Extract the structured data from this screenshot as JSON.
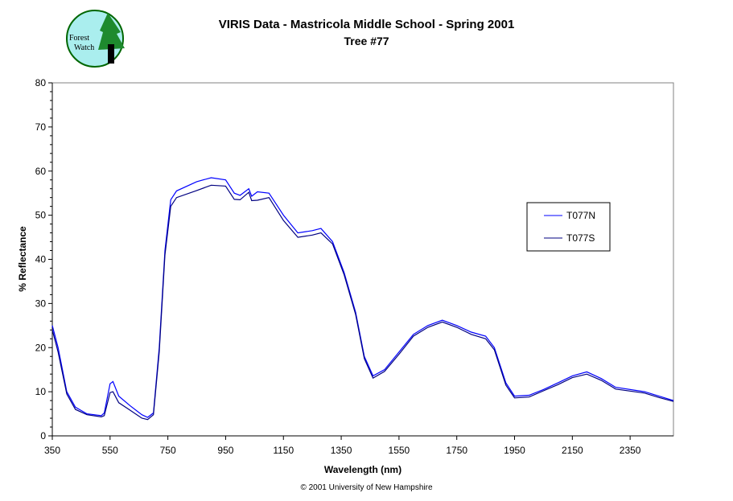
{
  "logo": {
    "text": "Forest Watch"
  },
  "footer": "© 2001 University of New Hampshire",
  "chart_data": {
    "type": "line",
    "title": "VIRIS Data - Mastricola Middle School - Spring 2001",
    "subtitle": "Tree #77",
    "xlabel": "Wavelength (nm)",
    "ylabel": "% Reflectance",
    "xlim": [
      350,
      2500
    ],
    "ylim": [
      0,
      80
    ],
    "xticks": [
      350,
      550,
      750,
      950,
      1150,
      1350,
      1550,
      1750,
      1950,
      2150,
      2350
    ],
    "yticks": [
      0,
      10,
      20,
      30,
      40,
      50,
      60,
      70,
      80
    ],
    "grid": false,
    "legend": "right",
    "series": [
      {
        "name": "T077N",
        "color": "#0000ff",
        "x": [
          350,
          370,
          400,
          430,
          470,
          520,
          530,
          550,
          560,
          580,
          620,
          660,
          680,
          700,
          720,
          740,
          760,
          780,
          850,
          900,
          950,
          980,
          1000,
          1030,
          1040,
          1060,
          1100,
          1150,
          1200,
          1250,
          1280,
          1320,
          1360,
          1400,
          1430,
          1460,
          1500,
          1550,
          1600,
          1650,
          1700,
          1750,
          1800,
          1850,
          1880,
          1920,
          1950,
          2000,
          2050,
          2100,
          2150,
          2200,
          2250,
          2300,
          2400,
          2450,
          2500
        ],
        "y": [
          25,
          20,
          10,
          6.5,
          5,
          4.6,
          5.2,
          11.8,
          12.3,
          9,
          6.8,
          4.8,
          4.2,
          5.2,
          20,
          42,
          53.5,
          55.5,
          57.6,
          58.5,
          58,
          55,
          54.5,
          56,
          54.3,
          55.3,
          55,
          50,
          46,
          46.5,
          47,
          44,
          37,
          28,
          18,
          13.6,
          15,
          19,
          23,
          25,
          26.2,
          25,
          23.5,
          22.6,
          20,
          12,
          9,
          9.2,
          10.5,
          12,
          13.6,
          14.5,
          13,
          11,
          10,
          9,
          8
        ]
      },
      {
        "name": "T077S",
        "color": "#000080",
        "x": [
          350,
          370,
          400,
          430,
          470,
          520,
          530,
          550,
          560,
          580,
          620,
          660,
          680,
          700,
          720,
          740,
          760,
          780,
          850,
          900,
          950,
          980,
          1000,
          1030,
          1040,
          1060,
          1100,
          1150,
          1200,
          1250,
          1280,
          1320,
          1360,
          1400,
          1430,
          1460,
          1500,
          1550,
          1600,
          1650,
          1700,
          1750,
          1800,
          1850,
          1880,
          1920,
          1950,
          2000,
          2050,
          2100,
          2150,
          2200,
          2250,
          2300,
          2400,
          2450,
          2500
        ],
        "y": [
          24,
          19,
          9.5,
          6,
          4.8,
          4.3,
          4.6,
          9.8,
          10,
          7.5,
          5.8,
          4,
          3.7,
          4.8,
          19,
          41,
          52,
          54,
          55.6,
          56.8,
          56.6,
          53.6,
          53.5,
          55.2,
          53.3,
          53.4,
          54,
          48.8,
          45,
          45.5,
          46,
          43.5,
          36.5,
          27.5,
          17.5,
          13.1,
          14.6,
          18.5,
          22.6,
          24.6,
          25.8,
          24.6,
          23,
          22,
          19.5,
          11.5,
          8.6,
          8.8,
          10.2,
          11.6,
          13.2,
          14,
          12.6,
          10.6,
          9.7,
          8.7,
          7.8
        ]
      }
    ]
  }
}
